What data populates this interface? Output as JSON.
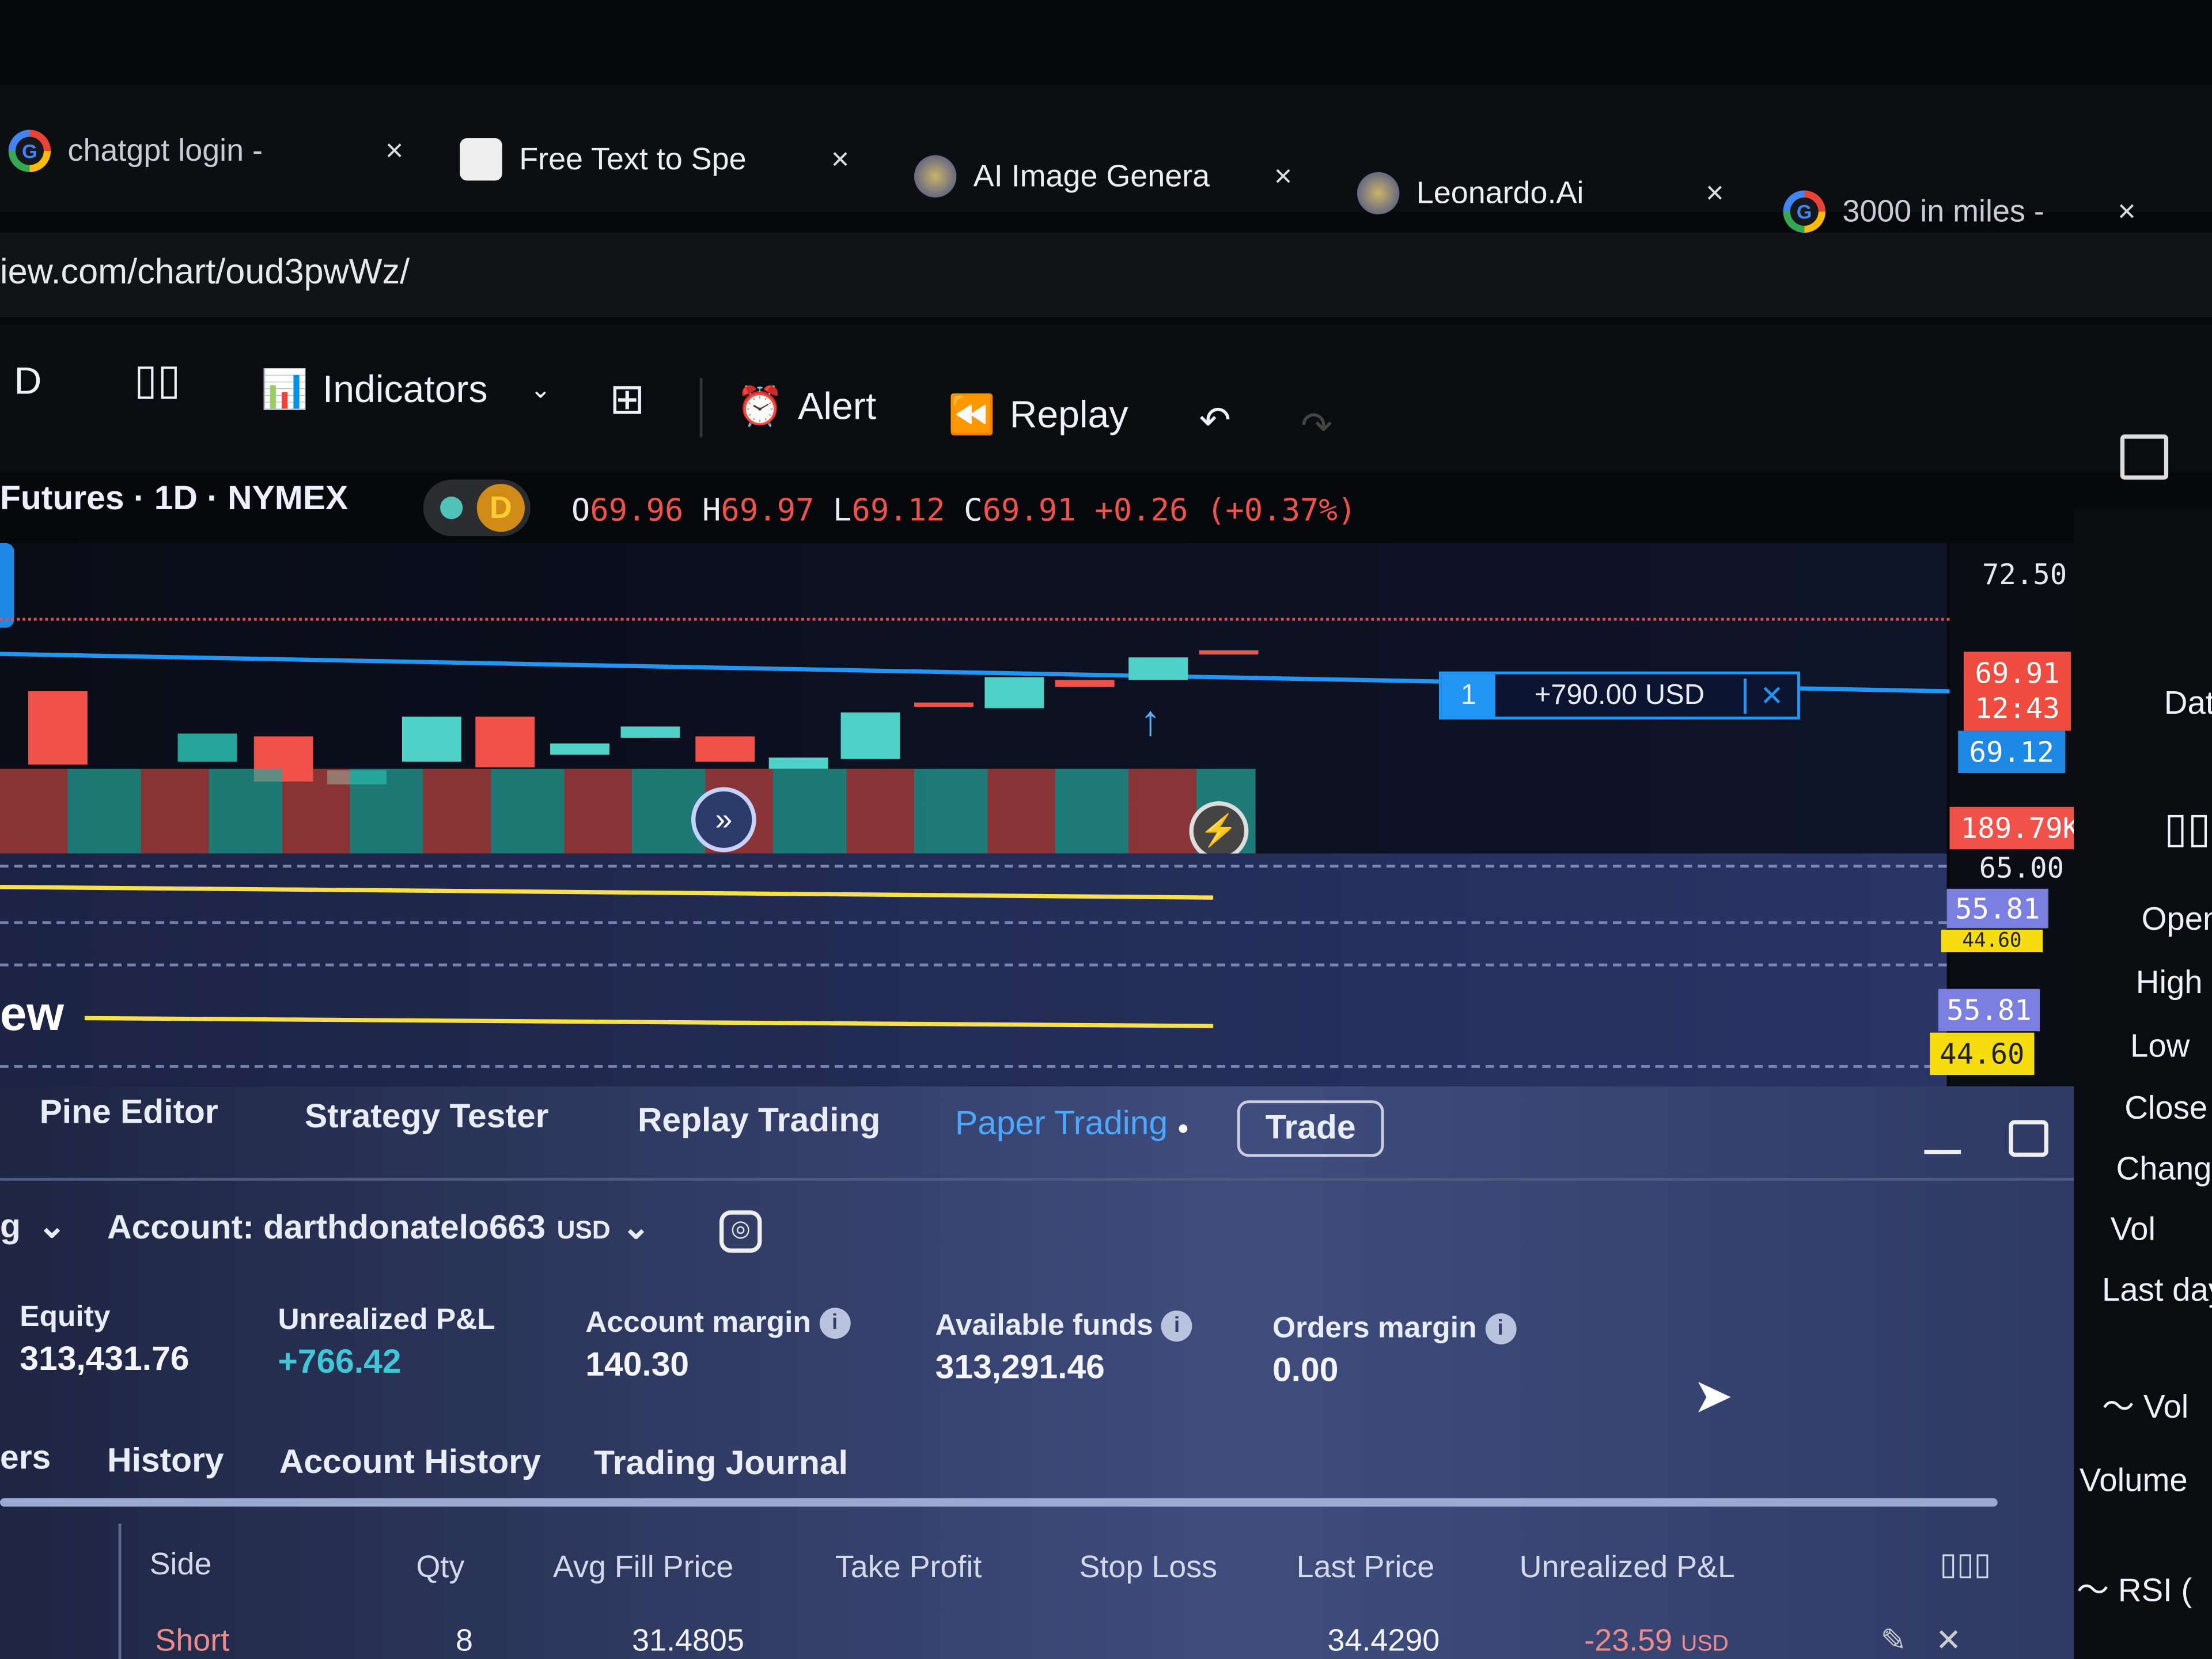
{
  "browser": {
    "tabs": [
      {
        "title": "chatgpt login -",
        "icon": "google-icon"
      },
      {
        "title": "Free Text to Spe",
        "icon": "page-icon"
      },
      {
        "title": "AI Image Genera",
        "icon": "leonardo-icon"
      },
      {
        "title": "Leonardo.Ai",
        "icon": "leonardo-icon"
      },
      {
        "title": "3000 in miles -",
        "icon": "google-icon"
      }
    ],
    "close_glyph": "×",
    "url": "iew.com/chart/oud3pwWz/"
  },
  "toolbar": {
    "interval": "D",
    "indicators": "Indicators",
    "alert": "Alert",
    "replay": "Replay"
  },
  "legend": {
    "symbol": "Futures · 1D · NYMEX",
    "badge": "D",
    "o_label": "O",
    "o": "69.96",
    "h_label": "H",
    "h": "69.97",
    "l_label": "L",
    "l": "69.12",
    "c_label": "C",
    "c": "69.91",
    "change": "+0.26 (+0.37%)"
  },
  "chart": {
    "price_top": "72.50",
    "last_price": "69.91",
    "countdown": "12:43",
    "bid": "69.12",
    "volume": "189.79K",
    "hidden_scale": "65.00",
    "rsi_a": "55.81",
    "rsi_b": "44.60",
    "rsi_a2": "55.81",
    "rsi_b2": "44.60",
    "position": {
      "qty": "1",
      "pnl": "+790.00 USD"
    },
    "watermark": "ew",
    "colors": {
      "up": "#26a69a",
      "down": "#f0524a",
      "position_line": "#2196f3"
    }
  },
  "bottom_panel": {
    "tabs": [
      "Pine Editor",
      "Strategy Tester",
      "Replay Trading",
      "Paper Trading"
    ],
    "trade_button": "Trade",
    "broker_fragment": "g",
    "account": "Account: darthdonatelo663",
    "currency": "USD",
    "summary": [
      {
        "label": "Equity",
        "value": "313,431.76"
      },
      {
        "label": "Unrealized P&L",
        "value": "+766.42"
      },
      {
        "label": "Account margin",
        "value": "140.30"
      },
      {
        "label": "Available funds",
        "value": "313,291.46"
      },
      {
        "label": "Orders margin",
        "value": "0.00"
      }
    ],
    "subtabs": [
      "ers",
      "History",
      "Account History",
      "Trading Journal"
    ],
    "columns": [
      "Side",
      "Qty",
      "Avg Fill Price",
      "Take Profit",
      "Stop Loss",
      "Last Price",
      "Unrealized P&L"
    ],
    "rows": [
      {
        "side": "Short",
        "qty": "8",
        "avg_fill": "31.4805",
        "take_profit": "",
        "stop_loss": "",
        "last_price": "34.4290",
        "pnl": "-23.59",
        "pnl_currency": "USD"
      }
    ]
  },
  "sidebar": {
    "header": "Dat",
    "fields": [
      "Open",
      "High",
      "Low",
      "Close",
      "Change",
      "Vol",
      "Last day"
    ],
    "vol_section": "Vol",
    "volume": "Volume",
    "rsi": "RSI ("
  }
}
